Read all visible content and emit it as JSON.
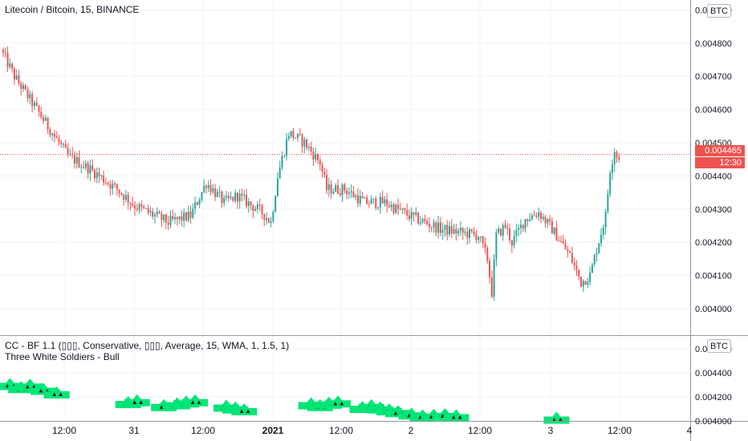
{
  "header": {
    "symbol_title": "Litecoin / Bitcoin, 15, BINANCE"
  },
  "indicator": {
    "title": "CC - BF 1.1 (▯▯▯, Conservative, ▯▯▯, Average, 15, WMA, 1, 1.5, 1)",
    "pattern_label": "Three White Soldiers - Bull"
  },
  "axis": {
    "currency_button": "BTC",
    "indicator_currency_button": "BTC",
    "price_ticks": [
      "0.004000",
      "0.004100",
      "0.004200",
      "0.004300",
      "0.004400",
      "0.004500",
      "0.004600",
      "0.004700",
      "0.004800",
      "0.004900"
    ],
    "indicator_ticks": [
      "0.004000",
      "0.004200",
      "0.004400",
      "0.004600"
    ],
    "time_labels": [
      {
        "label": "12:00",
        "bold": false
      },
      {
        "label": "31",
        "bold": false
      },
      {
        "label": "12:00",
        "bold": false
      },
      {
        "label": "2021",
        "bold": true
      },
      {
        "label": "12:00",
        "bold": false
      },
      {
        "label": "2",
        "bold": false
      },
      {
        "label": "12:00",
        "bold": false
      },
      {
        "label": "3",
        "bold": false
      },
      {
        "label": "12:00",
        "bold": false
      },
      {
        "label": "4",
        "bold": false
      }
    ]
  },
  "current_price": {
    "value": "0.004465",
    "countdown": "12:30",
    "price": 0.004465,
    "color": "#ef5350"
  },
  "colors": {
    "up": "#26a69a",
    "down": "#ef5350",
    "signal": "#00e676",
    "grid": "#f0f3fa"
  },
  "chart_data": {
    "type": "candlestick",
    "title": "Litecoin / Bitcoin, 15, BINANCE",
    "ylim": [
      0.00398,
      0.00492
    ],
    "anchor_path": [
      [
        0,
        0.00478
      ],
      [
        6,
        0.0047
      ],
      [
        14,
        0.00462
      ],
      [
        22,
        0.00454
      ],
      [
        30,
        0.00446
      ],
      [
        40,
        0.00442
      ],
      [
        52,
        0.00436
      ],
      [
        60,
        0.00431
      ],
      [
        75,
        0.00426
      ],
      [
        85,
        0.00428
      ],
      [
        92,
        0.00438
      ],
      [
        100,
        0.00432
      ],
      [
        106,
        0.00434
      ],
      [
        117,
        0.00429
      ],
      [
        121,
        0.00426
      ],
      [
        124,
        0.0044
      ],
      [
        129,
        0.00453
      ],
      [
        136,
        0.0045
      ],
      [
        143,
        0.00444
      ],
      [
        146,
        0.00436
      ],
      [
        154,
        0.00436
      ],
      [
        163,
        0.00432
      ],
      [
        172,
        0.00432
      ],
      [
        183,
        0.00428
      ],
      [
        197,
        0.00424
      ],
      [
        214,
        0.00422
      ],
      [
        218,
        0.00415
      ],
      [
        220,
        0.00405
      ],
      [
        222,
        0.00422
      ],
      [
        226,
        0.00425
      ],
      [
        229,
        0.0042
      ],
      [
        235,
        0.00427
      ],
      [
        241,
        0.00429
      ],
      [
        247,
        0.00424
      ],
      [
        255,
        0.00416
      ],
      [
        260,
        0.00408
      ],
      [
        264,
        0.0041
      ],
      [
        267,
        0.00418
      ],
      [
        271,
        0.00428
      ],
      [
        273,
        0.00442
      ],
      [
        275,
        0.00448
      ],
      [
        276,
        0.00446
      ]
    ],
    "signals": [
      {
        "x": 3,
        "y": 0.00427
      },
      {
        "x": 8,
        "y": 0.004245
      },
      {
        "x": 12,
        "y": 0.004265
      },
      {
        "x": 18,
        "y": 0.00423
      },
      {
        "x": 24,
        "y": 0.0042
      },
      {
        "x": 56,
        "y": 0.00412
      },
      {
        "x": 60,
        "y": 0.004135
      },
      {
        "x": 72,
        "y": 0.004095
      },
      {
        "x": 78,
        "y": 0.00411
      },
      {
        "x": 82,
        "y": 0.004125
      },
      {
        "x": 86,
        "y": 0.004135
      },
      {
        "x": 100,
        "y": 0.00409
      },
      {
        "x": 104,
        "y": 0.004075
      },
      {
        "x": 108,
        "y": 0.00406
      },
      {
        "x": 138,
        "y": 0.00411
      },
      {
        "x": 142,
        "y": 0.004095
      },
      {
        "x": 146,
        "y": 0.004115
      },
      {
        "x": 150,
        "y": 0.004125
      },
      {
        "x": 161,
        "y": 0.00408
      },
      {
        "x": 165,
        "y": 0.004095
      },
      {
        "x": 169,
        "y": 0.004075
      },
      {
        "x": 173,
        "y": 0.00406
      },
      {
        "x": 177,
        "y": 0.004045
      },
      {
        "x": 183,
        "y": 0.004025
      },
      {
        "x": 188,
        "y": 0.00401
      },
      {
        "x": 193,
        "y": 0.004015
      },
      {
        "x": 198,
        "y": 0.00402
      },
      {
        "x": 203,
        "y": 0.00401
      },
      {
        "x": 248,
        "y": 0.00399
      }
    ]
  }
}
